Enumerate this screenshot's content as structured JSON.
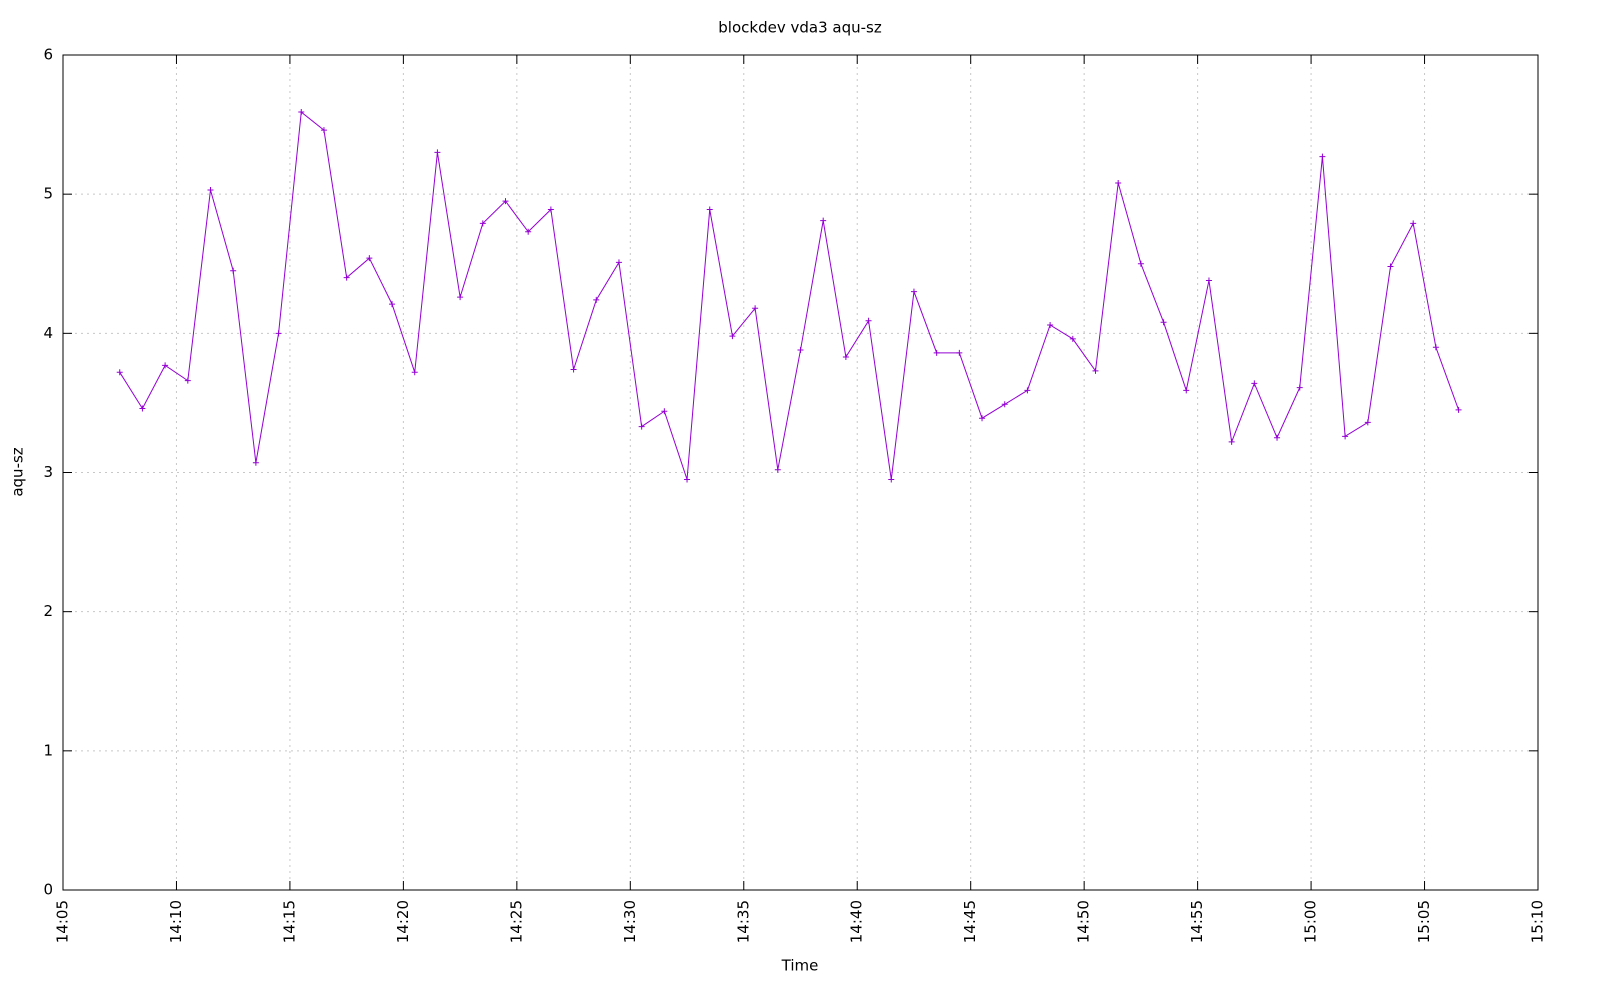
{
  "chart_data": {
    "type": "line",
    "title": "blockdev vda3 aqu-sz",
    "x_label": "Time",
    "y_label": "aqu-sz",
    "x": [
      847.5,
      848.5,
      849.5,
      850.5,
      851.5,
      852.5,
      853.5,
      854.5,
      855.5,
      856.5,
      857.5,
      858.5,
      859.5,
      860.5,
      861.5,
      862.5,
      863.5,
      864.5,
      865.5,
      866.5,
      867.5,
      868.5,
      869.5,
      870.5,
      871.5,
      872.5,
      873.5,
      874.5,
      875.5,
      876.5,
      877.5,
      878.5,
      879.5,
      880.5,
      881.5,
      882.5,
      883.5,
      884.5,
      885.5,
      886.5,
      887.5,
      888.5,
      889.5,
      890.5,
      891.5,
      892.5,
      893.5,
      894.5,
      895.5,
      896.5,
      897.5,
      898.5,
      899.5,
      900.5,
      901.5,
      902.5,
      903.5,
      904.5,
      905.5,
      906.5
    ],
    "series": [
      {
        "color": "#9400d3",
        "values": [
          3.72,
          3.46,
          3.77,
          3.66,
          5.03,
          4.45,
          3.07,
          4.0,
          5.59,
          5.46,
          4.4,
          4.54,
          4.21,
          3.72,
          5.3,
          4.26,
          4.79,
          4.95,
          4.73,
          4.89,
          3.74,
          4.24,
          4.51,
          3.33,
          3.44,
          2.95,
          4.89,
          3.98,
          4.18,
          3.02,
          3.88,
          4.81,
          3.83,
          4.09,
          2.95,
          4.3,
          3.86,
          3.86,
          3.39,
          3.49,
          3.59,
          4.06,
          3.96,
          3.73,
          5.08,
          4.5,
          4.08,
          3.59,
          4.38,
          3.22,
          3.64,
          3.25,
          3.61,
          5.27,
          3.26,
          3.36,
          4.48,
          4.79,
          3.9,
          3.45
        ]
      }
    ],
    "xlim": [
      845,
      910
    ],
    "xticks": [
      {
        "value": 845,
        "label": "14:05"
      },
      {
        "value": 850,
        "label": "14:10"
      },
      {
        "value": 855,
        "label": "14:15"
      },
      {
        "value": 860,
        "label": "14:20"
      },
      {
        "value": 865,
        "label": "14:25"
      },
      {
        "value": 870,
        "label": "14:30"
      },
      {
        "value": 875,
        "label": "14:35"
      },
      {
        "value": 880,
        "label": "14:40"
      },
      {
        "value": 885,
        "label": "14:45"
      },
      {
        "value": 890,
        "label": "14:50"
      },
      {
        "value": 895,
        "label": "14:55"
      },
      {
        "value": 900,
        "label": "15:00"
      },
      {
        "value": 905,
        "label": "15:05"
      },
      {
        "value": 910,
        "label": "15:10"
      }
    ],
    "ylim": [
      0,
      6
    ],
    "yticks": [
      0,
      1,
      2,
      3,
      4,
      5,
      6
    ],
    "grid": true
  }
}
